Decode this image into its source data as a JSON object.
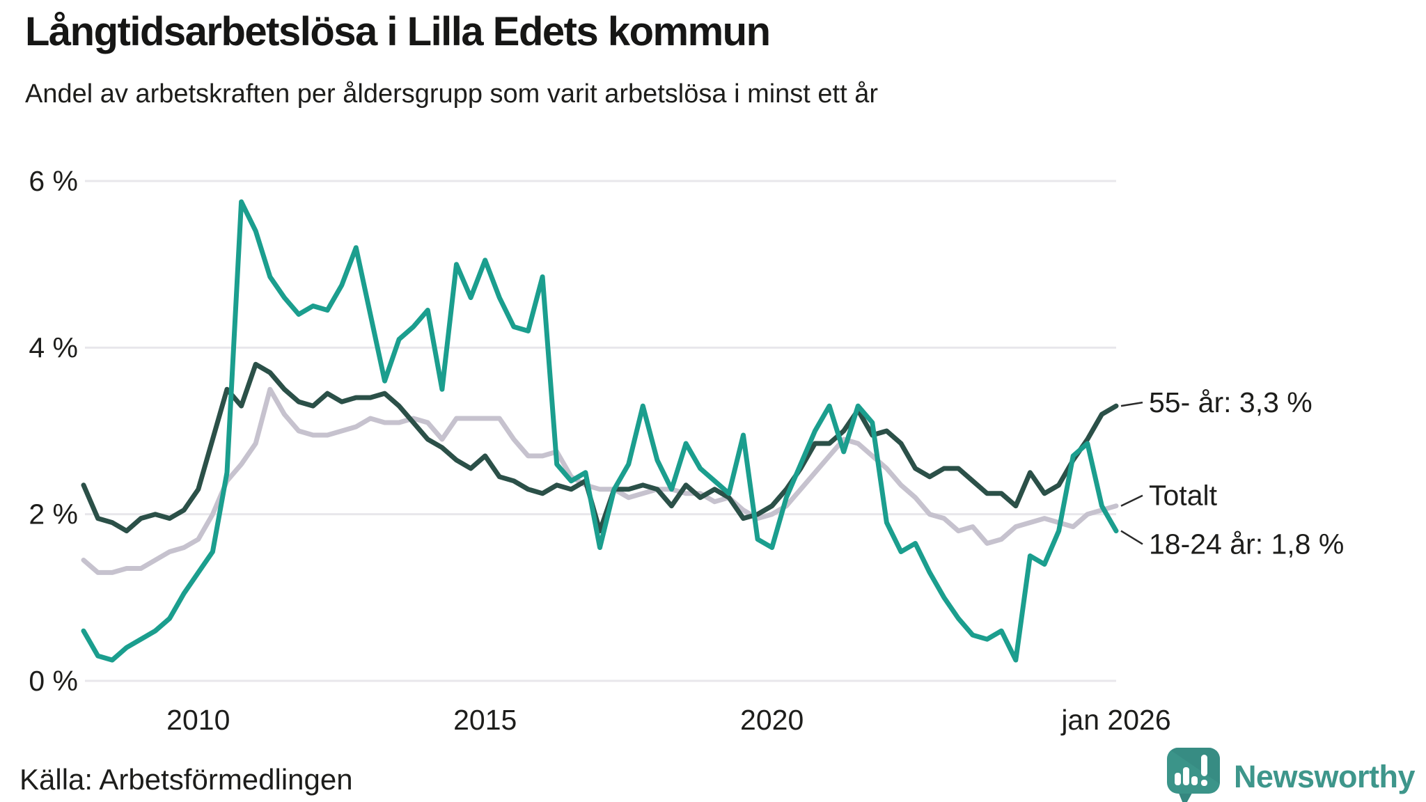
{
  "header": {
    "title": "Långtidsarbetslösa i Lilla Edets kommun",
    "subtitle": "Andel av arbetskraften per åldersgrupp som varit arbetslösa i minst ett år"
  },
  "footer": {
    "source": "Källa: Arbetsförmedlingen",
    "brand": "Newsworthy"
  },
  "colors": {
    "teal_line": "#1b9e8e",
    "dark_green_line": "#2b5048",
    "gray_line": "#c6c2ce",
    "gridline": "#e8e7eb",
    "text": "#1d1d1b",
    "connector": "#2a2a2a",
    "brand_teal": "#3e968b",
    "brand_icon": "#3b9489",
    "brand_icon_shade": "#35877f"
  },
  "chart_data": {
    "type": "line",
    "title": "Långtidsarbetslösa i Lilla Edets kommun",
    "subtitle": "Andel av arbetskraften per åldersgrupp som varit arbetslösa i minst ett år",
    "x_start": 2008,
    "x_step": 0.25,
    "x_end": 2026,
    "ylim": [
      0,
      6
    ],
    "grid": true,
    "x_ticks": [
      {
        "t": 2010,
        "label": "2010"
      },
      {
        "t": 2015,
        "label": "2015"
      },
      {
        "t": 2020,
        "label": "2020"
      },
      {
        "t": 2026,
        "label": "jan 2026"
      }
    ],
    "y_ticks": [
      {
        "v": 0,
        "label": "0 %"
      },
      {
        "v": 2,
        "label": "2 %"
      },
      {
        "v": 4,
        "label": "4 %"
      },
      {
        "v": 6,
        "label": "6 %"
      }
    ],
    "legend_position": "right-end-labels",
    "series": [
      {
        "name": "Totalt",
        "end_label": "Totalt",
        "end_value": 2.1,
        "color": "#c6c2ce",
        "values": [
          1.45,
          1.3,
          1.3,
          1.35,
          1.35,
          1.45,
          1.55,
          1.6,
          1.7,
          2.0,
          2.4,
          2.6,
          2.85,
          3.5,
          3.2,
          3.0,
          2.95,
          2.95,
          3.0,
          3.05,
          3.15,
          3.1,
          3.1,
          3.15,
          3.1,
          2.9,
          3.15,
          3.15,
          3.15,
          3.15,
          2.9,
          2.7,
          2.7,
          2.75,
          2.45,
          2.35,
          2.3,
          2.3,
          2.2,
          2.25,
          2.3,
          2.3,
          2.25,
          2.25,
          2.15,
          2.2,
          2.05,
          1.95,
          2.0,
          2.1,
          2.3,
          2.5,
          2.7,
          2.9,
          2.85,
          2.7,
          2.55,
          2.35,
          2.2,
          2.0,
          1.95,
          1.8,
          1.85,
          1.65,
          1.7,
          1.85,
          1.9,
          1.95,
          1.9,
          1.85,
          2.0,
          2.05,
          2.1
        ]
      },
      {
        "name": "55- år",
        "end_label": "55- år: 3,3 %",
        "end_value": 3.3,
        "color": "#2b5048",
        "values": [
          2.35,
          1.95,
          1.9,
          1.8,
          1.95,
          2.0,
          1.95,
          2.05,
          2.3,
          2.9,
          3.5,
          3.3,
          3.8,
          3.7,
          3.5,
          3.35,
          3.3,
          3.45,
          3.35,
          3.4,
          3.4,
          3.45,
          3.3,
          3.1,
          2.9,
          2.8,
          2.65,
          2.55,
          2.7,
          2.45,
          2.4,
          2.3,
          2.25,
          2.35,
          2.3,
          2.4,
          1.8,
          2.3,
          2.3,
          2.35,
          2.3,
          2.1,
          2.35,
          2.2,
          2.3,
          2.2,
          1.95,
          2.0,
          2.1,
          2.3,
          2.55,
          2.85,
          2.85,
          3.0,
          3.25,
          2.95,
          3.0,
          2.85,
          2.55,
          2.45,
          2.55,
          2.55,
          2.4,
          2.25,
          2.25,
          2.1,
          2.5,
          2.25,
          2.35,
          2.65,
          2.9,
          3.2,
          3.3
        ]
      },
      {
        "name": "18-24 år",
        "end_label": "18-24 år: 1,8 %",
        "end_value": 1.8,
        "color": "#1b9e8e",
        "values": [
          0.6,
          0.3,
          0.25,
          0.4,
          0.5,
          0.6,
          0.75,
          1.05,
          1.3,
          1.55,
          2.5,
          5.75,
          5.4,
          4.85,
          4.6,
          4.4,
          4.5,
          4.45,
          4.75,
          5.2,
          4.4,
          3.6,
          4.1,
          4.25,
          4.45,
          3.5,
          5.0,
          4.6,
          5.05,
          4.6,
          4.25,
          4.2,
          4.85,
          2.6,
          2.4,
          2.5,
          1.6,
          2.3,
          2.6,
          3.3,
          2.65,
          2.3,
          2.85,
          2.55,
          2.4,
          2.25,
          2.95,
          1.7,
          1.6,
          2.2,
          2.6,
          3.0,
          3.3,
          2.75,
          3.3,
          3.1,
          1.9,
          1.55,
          1.65,
          1.3,
          1.0,
          0.75,
          0.55,
          0.5,
          0.6,
          0.25,
          1.5,
          1.4,
          1.8,
          2.7,
          2.85,
          2.1,
          1.8
        ]
      }
    ]
  }
}
